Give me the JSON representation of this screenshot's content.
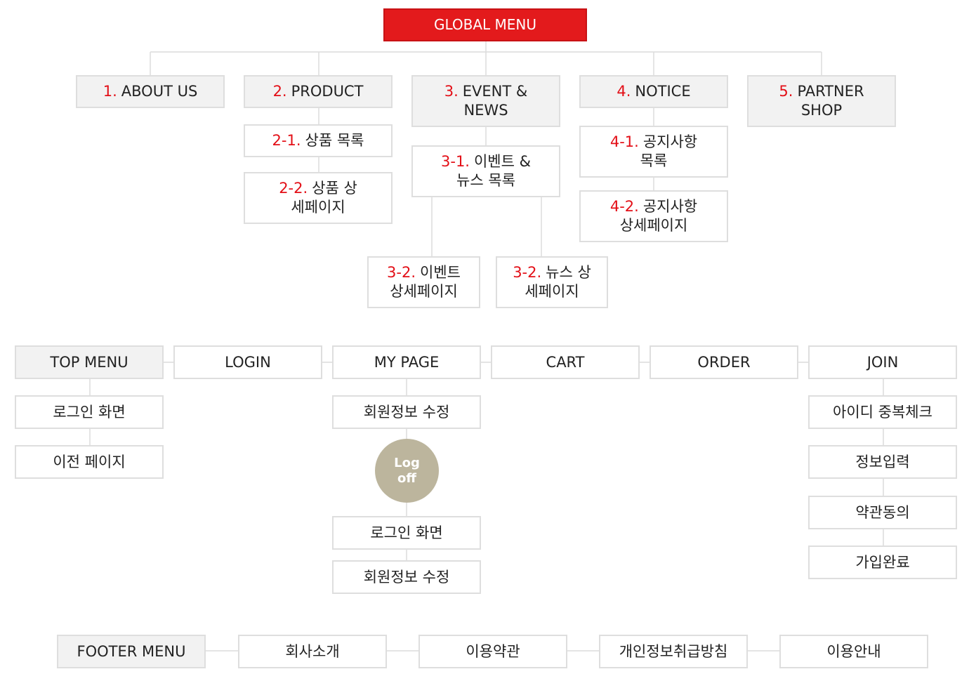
{
  "global_menu": {
    "label": "GLOBAL MENU"
  },
  "sections": [
    {
      "num": "1.",
      "label": "ABOUT US"
    },
    {
      "num": "2.",
      "label": "PRODUCT",
      "children": [
        {
          "num": "2-1.",
          "label": "상품 목록"
        },
        {
          "num": "2-2.",
          "label": "상품 상세페이지"
        }
      ]
    },
    {
      "num": "3.",
      "label": "EVENT & NEWS",
      "children": [
        {
          "num": "3-1.",
          "label": "이벤트 & 뉴스 목록"
        },
        {
          "num": "3-2.",
          "label": "이벤트 상세페이지"
        },
        {
          "num": "3-2.",
          "label": "뉴스 상세페이지"
        }
      ]
    },
    {
      "num": "4.",
      "label": "NOTICE",
      "children": [
        {
          "num": "4-1.",
          "label": "공지사항 목록"
        },
        {
          "num": "4-2.",
          "label": "공지사항 상세페이지"
        }
      ]
    },
    {
      "num": "5.",
      "label": "PARTNER SHOP"
    }
  ],
  "top_menu": {
    "label": "TOP MENU",
    "children": [
      "로그인 화면",
      "이전 페이지"
    ],
    "items": [
      {
        "label": "LOGIN"
      },
      {
        "label": "MY PAGE",
        "children": [
          "회원정보 수정",
          "로그인 화면",
          "회원정보 수정"
        ],
        "logoff": "Log off"
      },
      {
        "label": "CART"
      },
      {
        "label": "ORDER"
      },
      {
        "label": "JOIN",
        "children": [
          "아이디 중복체크",
          "정보입력",
          "약관동의",
          "가입완료"
        ]
      }
    ]
  },
  "footer_menu": {
    "label": "FOOTER MENU",
    "items": [
      "회사소개",
      "이용약관",
      "개인정보취급방침",
      "이용안내"
    ]
  }
}
